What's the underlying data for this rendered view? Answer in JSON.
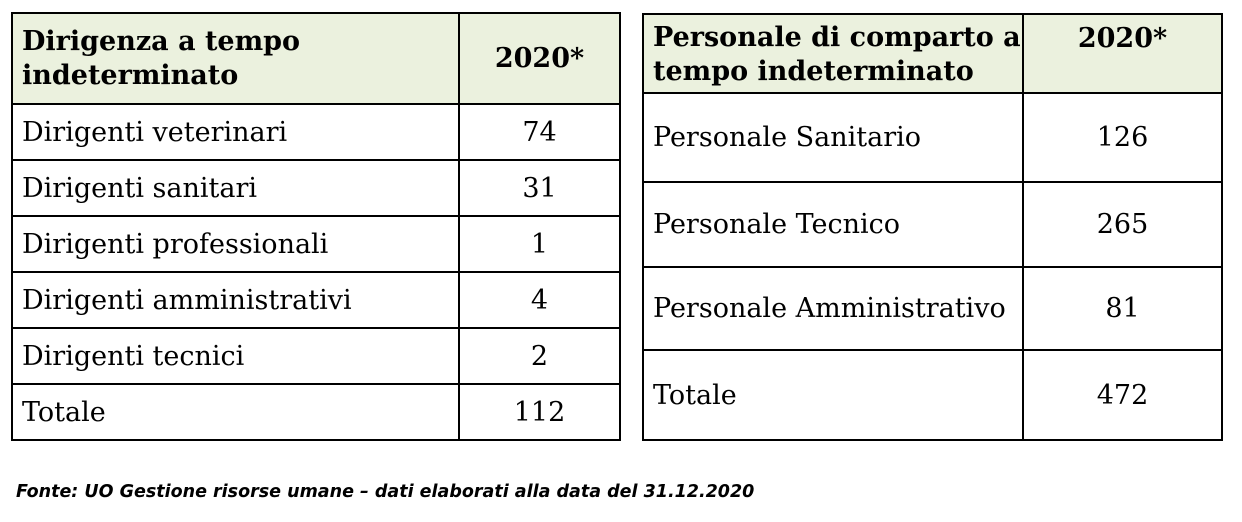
{
  "table_left": {
    "header": {
      "label": "Dirigenza a tempo indeterminato",
      "year": "2020*"
    },
    "rows": [
      {
        "label": "Dirigenti veterinari",
        "value": "74"
      },
      {
        "label": "Dirigenti sanitari",
        "value": "31"
      },
      {
        "label": "Dirigenti professionali",
        "value": "1"
      },
      {
        "label": "Dirigenti amministrativi",
        "value": "4"
      },
      {
        "label": "Dirigenti tecnici",
        "value": "2"
      }
    ],
    "total": {
      "label": "Totale",
      "value": "112"
    }
  },
  "table_right": {
    "header": {
      "label": "Personale di comparto a tempo indeterminato",
      "year": "2020*"
    },
    "rows": [
      {
        "label": "Personale Sanitario",
        "value": "126"
      },
      {
        "label": "Personale Tecnico",
        "value": "265"
      },
      {
        "label": "Personale Amministrativo",
        "value": "81"
      }
    ],
    "total": {
      "label": "Totale",
      "value": "472"
    }
  },
  "footnote": "Fonte: UO Gestione risorse umane – dati elaborati alla data del 31.12.2020"
}
